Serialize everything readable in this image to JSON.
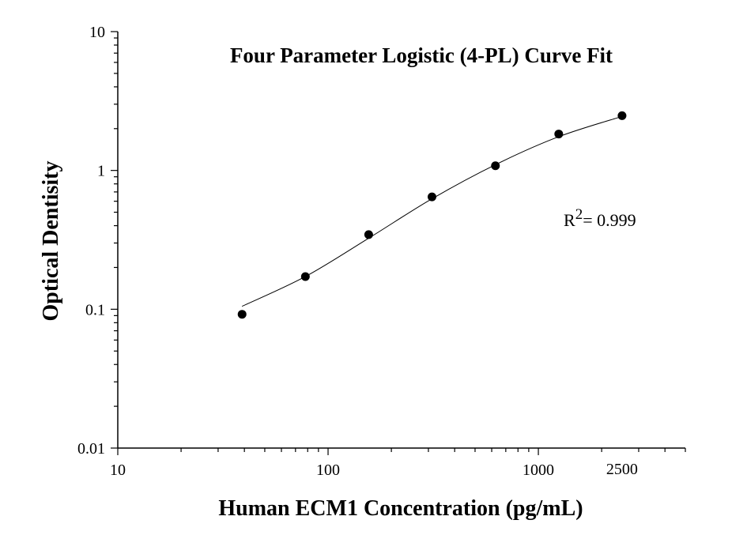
{
  "chart_data": {
    "type": "scatter",
    "title": "Four Parameter Logistic (4-PL) Curve Fit",
    "xlabel": "Human ECM1 Concentration (pg/mL)",
    "ylabel": "Optical Dentisity",
    "xscale": "log",
    "yscale": "log",
    "xlim": [
      10,
      5000
    ],
    "ylim": [
      0.01,
      10
    ],
    "x_tick_labels": [
      {
        "value": 10,
        "label": "10"
      },
      {
        "value": 100,
        "label": "100"
      },
      {
        "value": 1000,
        "label": "1000"
      },
      {
        "value": 2500,
        "label": "2500"
      }
    ],
    "y_tick_labels": [
      {
        "value": 10,
        "label": "10"
      },
      {
        "value": 1,
        "label": "1"
      },
      {
        "value": 0.1,
        "label": "0.1"
      },
      {
        "value": 0.01,
        "label": "0.01"
      }
    ],
    "grid": false,
    "legend": "none",
    "series": [
      {
        "points": [
          {
            "x": 39,
            "y": 0.092
          },
          {
            "x": 78,
            "y": 0.172
          },
          {
            "x": 156,
            "y": 0.345
          },
          {
            "x": 312,
            "y": 0.645
          },
          {
            "x": 625,
            "y": 1.08
          },
          {
            "x": 1250,
            "y": 1.83
          },
          {
            "x": 2500,
            "y": 2.48
          }
        ],
        "marker_color": "#000000"
      }
    ],
    "fit_curve": {
      "model": "4-PL",
      "x_range": [
        39,
        2500
      ],
      "points": [
        {
          "x": 39,
          "y": 0.105
        },
        {
          "x": 78,
          "y": 0.172
        },
        {
          "x": 156,
          "y": 0.325
        },
        {
          "x": 312,
          "y": 0.625
        },
        {
          "x": 625,
          "y": 1.1
        },
        {
          "x": 1250,
          "y": 1.75
        },
        {
          "x": 2500,
          "y": 2.45
        }
      ],
      "color": "#000000"
    },
    "annotation": {
      "prefix": "R",
      "superscript": "2",
      "suffix": "= 0.999"
    }
  }
}
